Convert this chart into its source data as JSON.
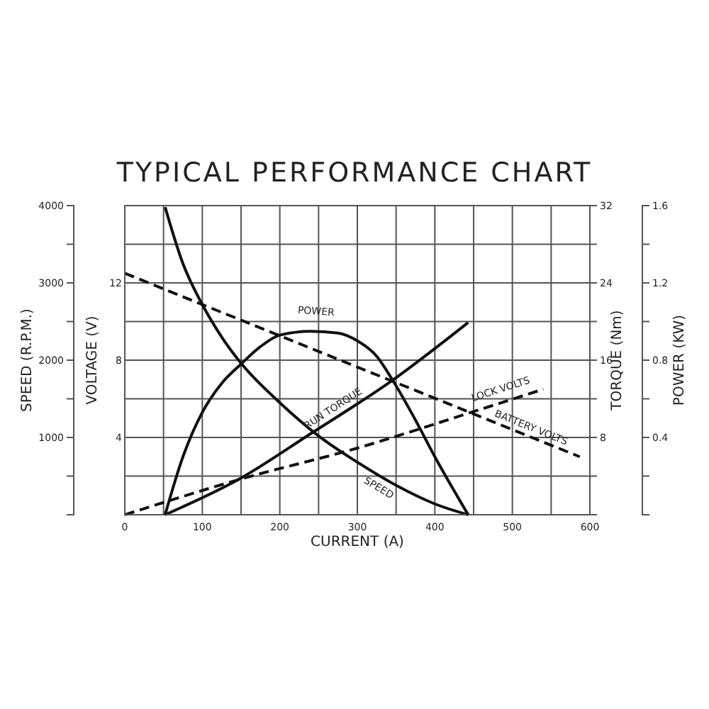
{
  "chart_data": [
    {
      "type": "line",
      "title": "TYPICAL PERFORMANCE CHART",
      "xlabel": "CURRENT (A)",
      "ylabel": "VOLTAGE (V)",
      "y2label": "TORQUE (Nm)",
      "y3label": "SPEED (R.P.M.)",
      "xlim": [
        0,
        600
      ],
      "xticks": [
        0,
        {
          "value": 50,
          "label": null
        },
        100,
        {
          "value": 150,
          "label": null
        },
        200,
        {
          "value": 250,
          "label": null
        },
        300,
        {
          "value": 350,
          "label": null
        },
        400,
        {
          "value": 450,
          "label": null
        },
        500,
        {
          "value": 550,
          "label": null
        },
        600
      ],
      "ylim": [
        0,
        16
      ],
      "yticks": [
        {
          "value": 2,
          "label": null
        },
        4,
        {
          "value": 6,
          "label": null
        },
        8,
        {
          "value": 10,
          "label": null
        },
        12,
        {
          "value": 14,
          "label": null
        },
        {
          "value": 16,
          "label": null
        }
      ],
      "y2lim": [
        0,
        32
      ],
      "y2ticks": [
        {
          "value": 0,
          "label": null
        },
        {
          "value": 4,
          "label": null
        },
        8,
        {
          "value": 12,
          "label": null
        },
        16,
        {
          "value": 20,
          "label": null
        },
        24,
        {
          "value": 28,
          "label": null
        },
        32
      ],
      "y3lim": [
        0,
        4000
      ],
      "y3ticks": [
        {
          "value": 0,
          "label": null
        },
        {
          "value": 500,
          "label": null
        },
        1000,
        {
          "value": 1500,
          "label": null
        },
        2000,
        {
          "value": 2500,
          "label": null
        },
        3000,
        {
          "value": 3500,
          "label": null
        },
        4000
      ],
      "grid": true,
      "marker": "none",
      "series": [
        {
          "name": "SPEED",
          "color": "#111111",
          "axis": "y3",
          "line_style": "solid",
          "x": [
            52,
            75,
            100,
            125,
            150,
            200,
            250,
            300,
            350,
            400,
            443
          ],
          "values": [
            3980,
            3250,
            2720,
            2300,
            1960,
            1450,
            1020,
            680,
            380,
            140,
            0
          ]
        },
        {
          "name": "RUN TORQUE",
          "color": "#111111",
          "axis": "y2",
          "line_style": "solid",
          "x": [
            52,
            150,
            240,
            345,
            443
          ],
          "values": [
            0,
            3.8,
            8.4,
            13.9,
            19.9
          ]
        },
        {
          "name": "LOCK VOLTS",
          "color": "#111111",
          "line_style": "dashed",
          "x": [
            0,
            150,
            300,
            443,
            540
          ],
          "values": [
            0,
            1.85,
            3.45,
            5.25,
            6.5
          ]
        },
        {
          "name": "BATTERY VOLTS",
          "color": "#111111",
          "line_style": "dashed",
          "x": [
            0,
            587
          ],
          "values": [
            12.5,
            3.0
          ]
        }
      ]
    },
    {
      "type": "line",
      "ylabel": "POWER (KW)",
      "tick_labels": "y",
      "xlim": [
        0,
        600
      ],
      "ylim": [
        0,
        1.6
      ],
      "yticks": [
        {
          "value": 0,
          "label": null
        },
        {
          "value": 0.2,
          "label": null
        },
        0.4,
        {
          "value": 0.6,
          "label": null
        },
        0.8,
        {
          "value": 1.0,
          "label": null
        },
        1.2,
        {
          "value": 1.4,
          "label": null
        },
        1.6
      ],
      "marker": "none",
      "series": [
        {
          "name": "POWER",
          "color": "#111111",
          "line_style": "solid",
          "x": [
            52,
            75,
            100,
            125,
            150,
            175,
            200,
            240,
            275,
            300,
            325,
            345,
            375,
            400,
            443
          ],
          "values": [
            0,
            0.3,
            0.53,
            0.68,
            0.78,
            0.87,
            0.93,
            0.95,
            0.94,
            0.9,
            0.82,
            0.7,
            0.49,
            0.3,
            0
          ]
        }
      ]
    }
  ]
}
